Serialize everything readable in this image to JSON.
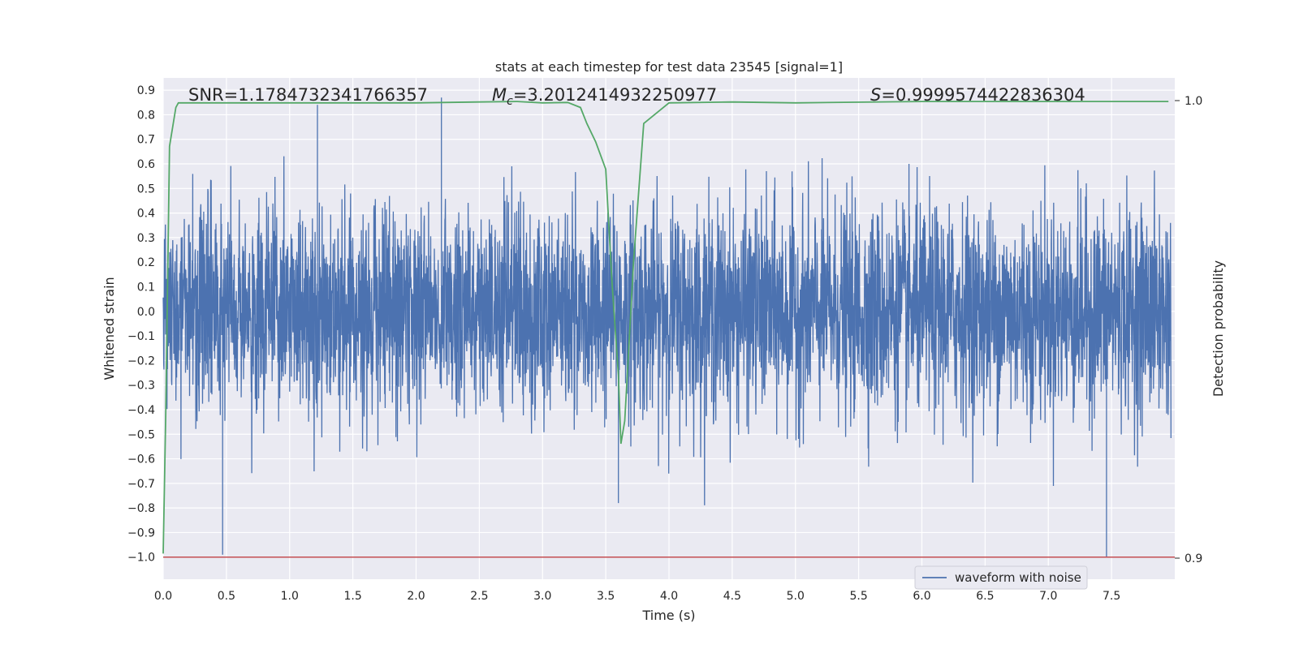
{
  "chart_data": {
    "type": "line",
    "title": "stats at each timestep for test data 23545 [signal=1]",
    "xlabel": "Time (s)",
    "ylabel": "Whitened strain",
    "ylabel_right": "Detection probability",
    "xlim": [
      0.0,
      8.0
    ],
    "ylim": [
      -1.09,
      0.95
    ],
    "ylim_right": [
      0.9,
      1.0
    ],
    "x_ticks": [
      "0.0",
      "0.5",
      "1.0",
      "1.5",
      "2.0",
      "2.5",
      "3.0",
      "3.5",
      "4.0",
      "4.5",
      "5.0",
      "5.5",
      "6.0",
      "6.5",
      "7.0",
      "7.5"
    ],
    "y_ticks": [
      "0.9",
      "0.8",
      "0.7",
      "0.6",
      "0.5",
      "0.4",
      "0.3",
      "0.2",
      "0.1",
      "0.0",
      "-0.1",
      "-0.2",
      "-0.3",
      "-0.4",
      "-0.5",
      "-0.6",
      "-0.7",
      "-0.8",
      "-0.9",
      "-1.0"
    ],
    "y_ticks_right": [
      "1.0",
      "0.9"
    ],
    "grid": true,
    "legend_position": "lower-right",
    "annotations": {
      "snr": "SNR=1.1784732341766357",
      "mc_symbol": "M",
      "mc_sub": "c",
      "mc_value": "=3.2012414932250977",
      "s_symbol": "S",
      "s_value": "=0.9999574422836304"
    },
    "series": [
      {
        "name": "waveform with noise",
        "axis": "left",
        "color": "#4c72b0",
        "description_type": "noise",
        "amplitude_typical": 0.5,
        "extremes": [
          [
            0.47,
            -0.99
          ],
          [
            1.22,
            0.84
          ],
          [
            2.2,
            0.87
          ],
          [
            3.6,
            -0.78
          ],
          [
            7.46,
            -1.0
          ]
        ]
      },
      {
        "name": "",
        "axis": "right",
        "color": "#55a868",
        "x": [
          0.0,
          0.02,
          0.05,
          0.1,
          0.12,
          0.5,
          1.0,
          1.5,
          2.0,
          2.5,
          2.8,
          3.0,
          3.2,
          3.3,
          3.35,
          3.42,
          3.5,
          3.55,
          3.6,
          3.62,
          3.65,
          3.68,
          3.72,
          3.8,
          4.0,
          4.5,
          5.0,
          6.0,
          7.0,
          7.95
        ],
        "y": [
          0.901,
          0.931,
          0.99,
          0.9985,
          0.9995,
          0.9995,
          0.9995,
          0.9995,
          0.9995,
          0.9997,
          0.9998,
          0.9995,
          0.9996,
          0.9985,
          0.995,
          0.991,
          0.985,
          0.96,
          0.94,
          0.925,
          0.93,
          0.945,
          0.965,
          0.995,
          0.9995,
          0.9997,
          0.9995,
          0.9998,
          0.9998,
          0.9998
        ]
      },
      {
        "name": "",
        "axis": "left",
        "color": "#c44e52",
        "type": "hline",
        "y": -1.0
      }
    ]
  }
}
